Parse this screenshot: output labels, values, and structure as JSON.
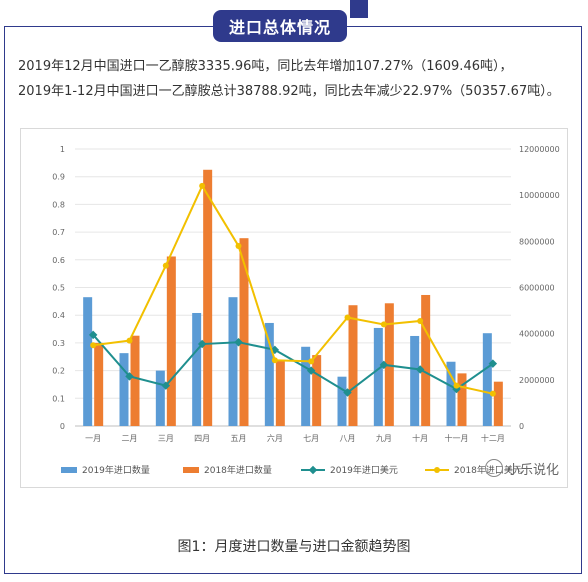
{
  "header": {
    "title": "进口总体情况",
    "accent_color": "#2f3a8c"
  },
  "intro": {
    "line1": "2019年12月中国进口一乙醇胺3335.96吨，同比去年增加107.27%（1609.46吨），",
    "line2": "2019年1-12月中国进口一乙醇胺总计38788.92吨，同比去年减少22.97%（50357.67吨）。"
  },
  "chart_data": {
    "type": "bar",
    "categories": [
      "一月",
      "二月",
      "三月",
      "四月",
      "五月",
      "六月",
      "七月",
      "八月",
      "九月",
      "十月",
      "十一月",
      "十二月"
    ],
    "left_axis": {
      "ylim": [
        0,
        1
      ],
      "ticks": [
        "0",
        "0.1",
        "0.2",
        "0.3",
        "0.4",
        "0.5",
        "0.6",
        "0.7",
        "0.8",
        "0.9",
        "1"
      ]
    },
    "right_axis": {
      "ylim": [
        0,
        12000000
      ],
      "ticks": [
        "0",
        "2000000",
        "4000000",
        "6000000",
        "8000000",
        "10000000",
        "12000000"
      ]
    },
    "series": [
      {
        "name": "2019年进口数量",
        "type": "bar",
        "axis": "left",
        "color": "#5b9bd5",
        "values": [
          0.465,
          0.263,
          0.2,
          0.408,
          0.465,
          0.372,
          0.286,
          0.178,
          0.354,
          0.325,
          0.232,
          0.335
        ]
      },
      {
        "name": "2018年进口数量",
        "type": "bar",
        "axis": "left",
        "color": "#ed7d31",
        "values": [
          0.3,
          0.326,
          0.612,
          0.925,
          0.678,
          0.237,
          0.256,
          0.436,
          0.443,
          0.473,
          0.19,
          0.16
        ]
      },
      {
        "name": "2019年进口美元",
        "type": "line",
        "axis": "right",
        "color": "#1f8f8f",
        "values": [
          3950000,
          2150000,
          1750000,
          3550000,
          3630000,
          3300000,
          2400000,
          1450000,
          2650000,
          2450000,
          1600000,
          2700000
        ]
      },
      {
        "name": "2018年进口美元",
        "type": "line",
        "axis": "right",
        "color": "#f2c000",
        "values": [
          3500000,
          3700000,
          6950000,
          10400000,
          7800000,
          2850000,
          2800000,
          4700000,
          4400000,
          4550000,
          1750000,
          1400000
        ]
      }
    ],
    "grid": true,
    "legend_position": "bottom"
  },
  "watermark": {
    "text": "小乐说化"
  },
  "caption": "图1：月度进口数量与进口金额趋势图"
}
